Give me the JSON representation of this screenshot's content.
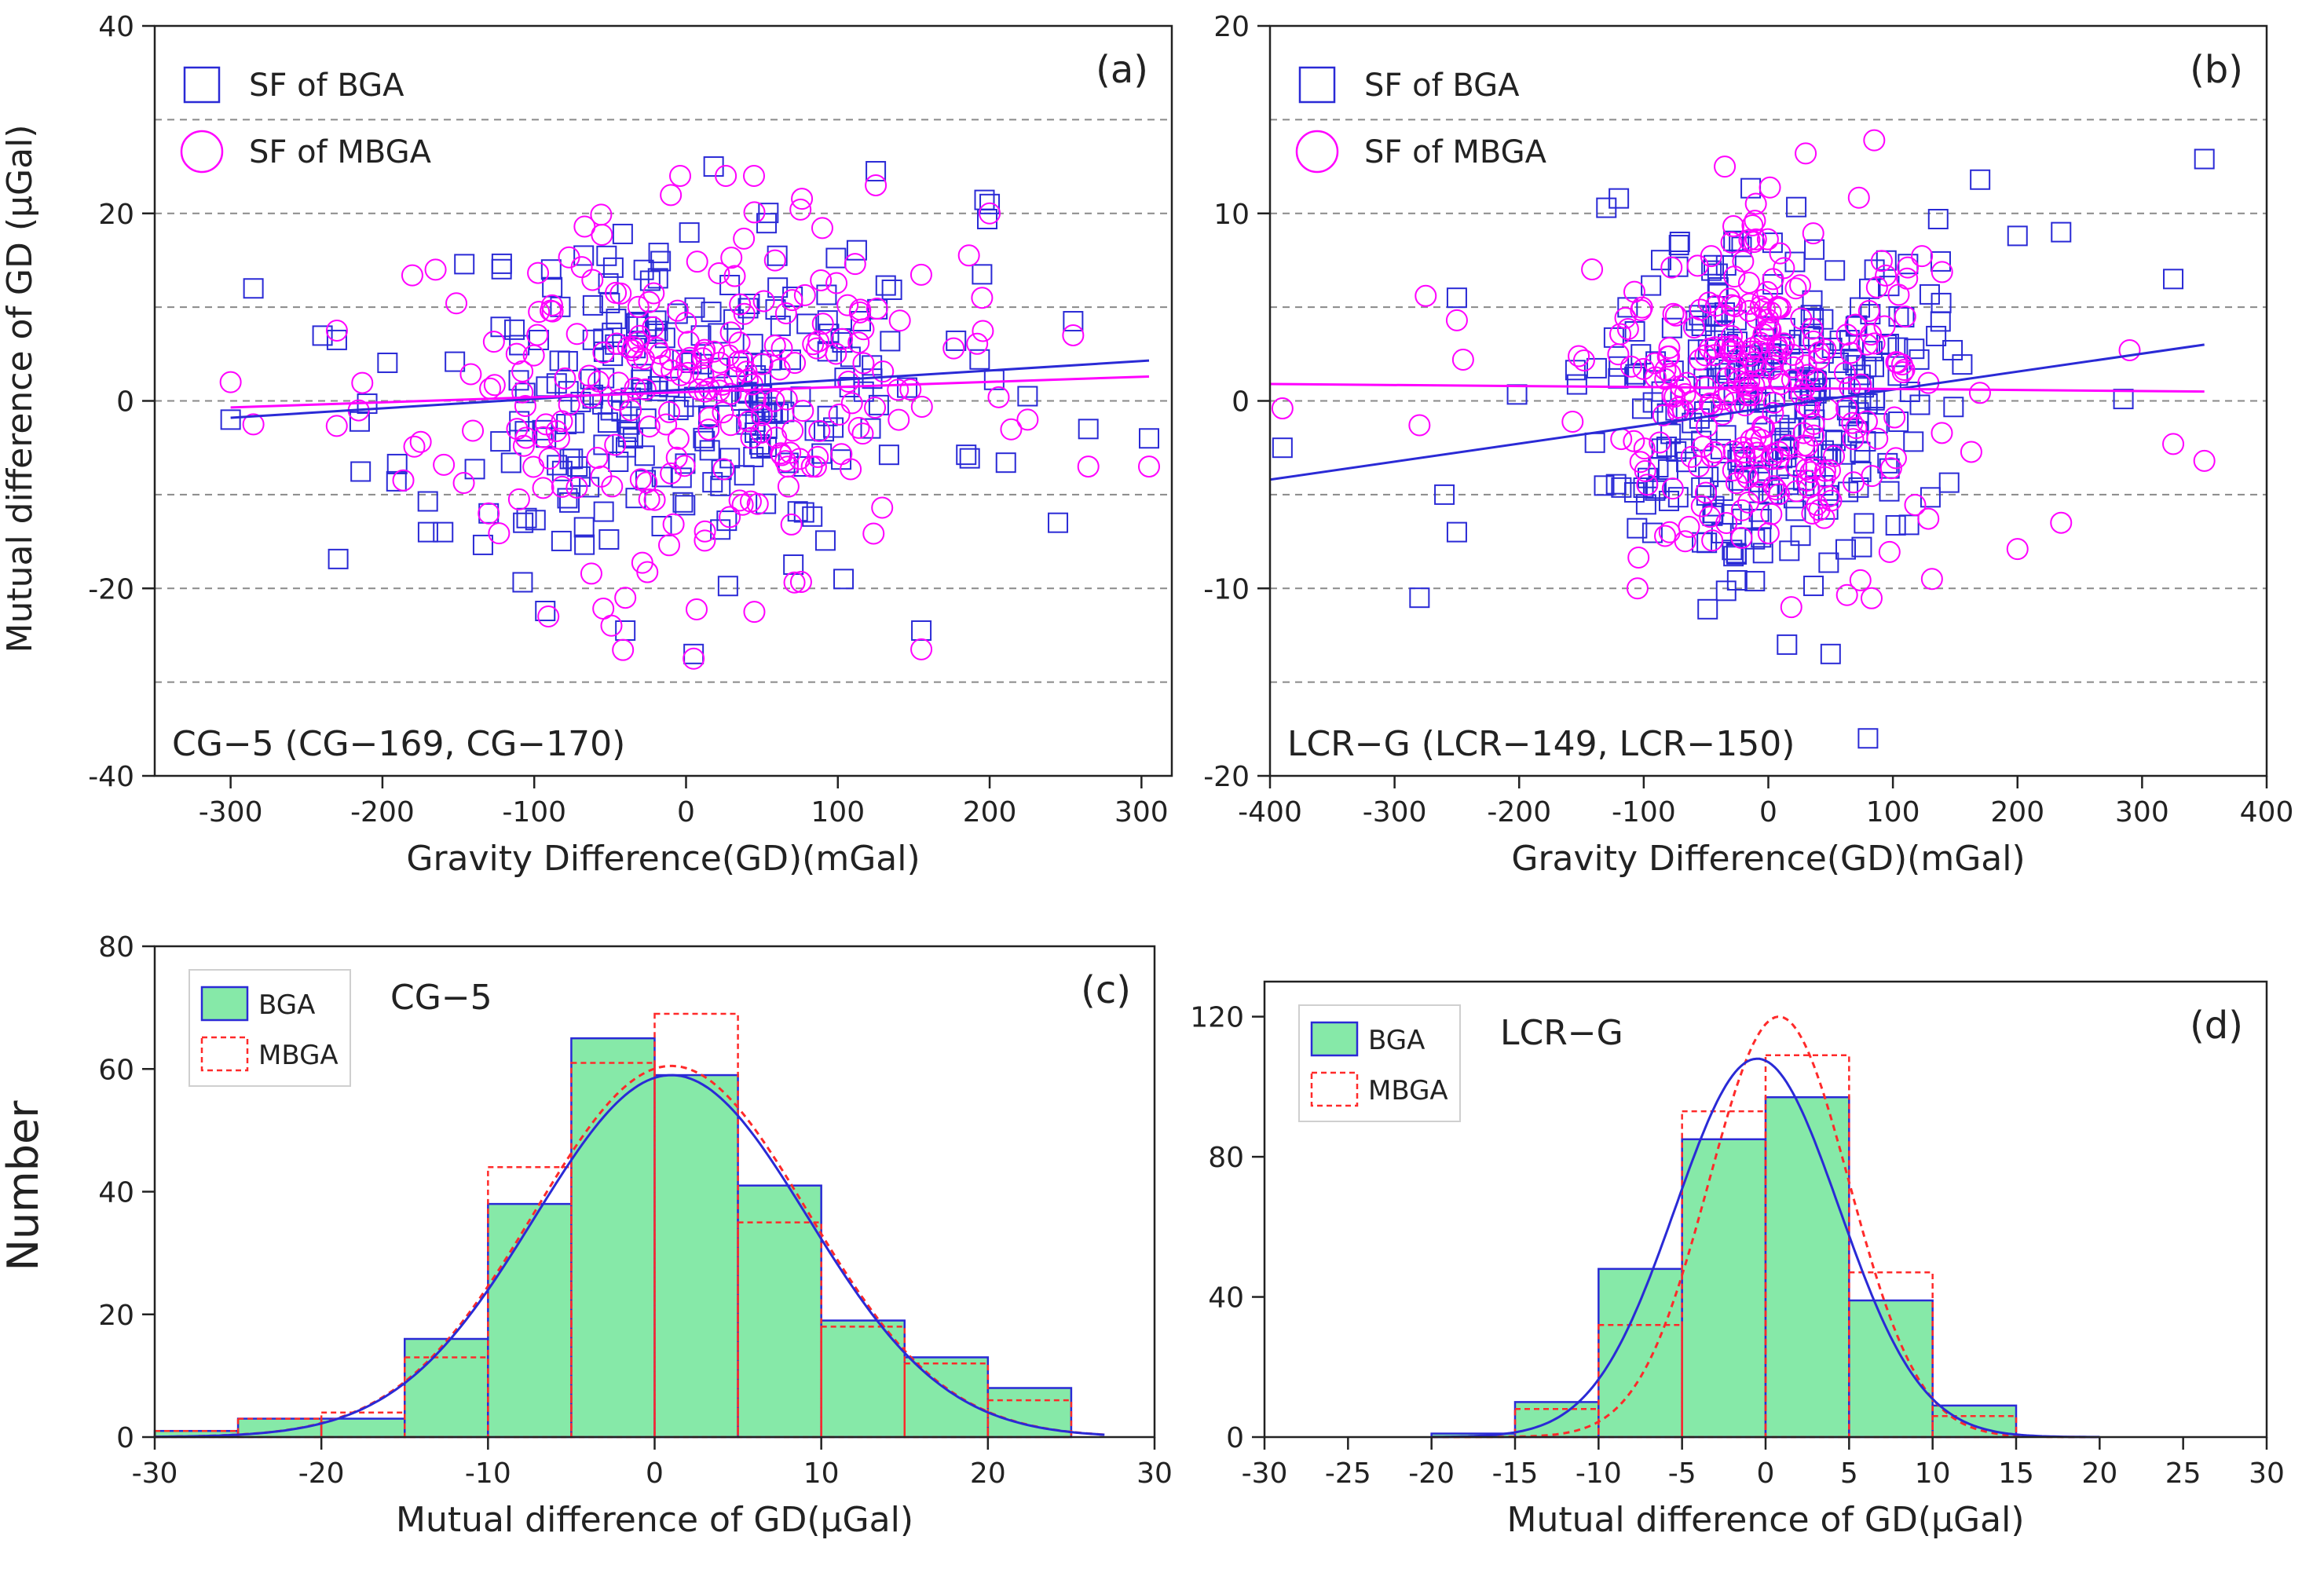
{
  "colors": {
    "bga": "#2a2ad6",
    "mbga": "#ff00ff",
    "mbga_hist": "#ff2a2a",
    "hist_fill": "#86e9a8",
    "grid": "#8a8a8a",
    "axis": "#222222"
  },
  "y_title_top": "Mutual difference of GD  (μGal)",
  "y_title_bottom": "Number",
  "chart_data": [
    {
      "panel": "a",
      "type": "scatter",
      "panel_label": "(a)",
      "note": "CG−5 (CG−169, CG−170)",
      "xlabel": "Gravity Difference(GD)(mGal)",
      "xlim": [
        -350,
        320
      ],
      "ylim": [
        -40,
        40
      ],
      "xticks": [
        -300,
        -200,
        -100,
        0,
        100,
        200,
        300
      ],
      "yticks": [
        -40,
        -20,
        0,
        20,
        40
      ],
      "xtick_labels": [
        "-300",
        "-200",
        "-100",
        "0",
        "100",
        "200",
        "300"
      ],
      "ytick_labels": [
        "-40",
        "-20",
        "0",
        "20",
        "40"
      ],
      "grid_y": [
        -30,
        -20,
        -10,
        0,
        10,
        20,
        30
      ],
      "legend": [
        "SF of BGA",
        "SF of MBGA"
      ],
      "trend_bga": [
        [
          -300,
          -1.8
        ],
        [
          305,
          4.3
        ]
      ],
      "trend_mbga": [
        [
          -300,
          -0.7
        ],
        [
          305,
          2.6
        ]
      ],
      "series": [
        {
          "name": "SF of BGA",
          "marker": "square",
          "seed": 11,
          "n": 230,
          "x_sigma": 85,
          "x_clip": [
            -300,
            305
          ],
          "y_sigma": 9.2,
          "y_clip": [
            -28,
            25
          ],
          "slope": 0.01,
          "intercept": 1.2,
          "points": [
            [
              -300,
              -2
            ],
            [
              -285,
              12
            ],
            [
              -230,
              6.5
            ],
            [
              -215,
              -2.2
            ],
            [
              -170,
              -14
            ],
            [
              -160,
              -14
            ],
            [
              -130,
              -12
            ],
            [
              -105,
              -12.5
            ],
            [
              125,
              24.5
            ],
            [
              155,
              -24.5
            ],
            [
              195,
              13.5
            ],
            [
              200,
              21
            ],
            [
              225,
              0.5
            ],
            [
              245,
              -13
            ],
            [
              255,
              8.5
            ],
            [
              265,
              -3
            ],
            [
              305,
              -4
            ],
            [
              -40,
              -24.5
            ],
            [
              5,
              -27
            ]
          ]
        },
        {
          "name": "SF of MBGA",
          "marker": "circle",
          "seed": 23,
          "n": 230,
          "x_sigma": 85,
          "x_clip": [
            -300,
            305
          ],
          "y_sigma": 9.2,
          "y_clip": [
            -28,
            24
          ],
          "slope": 0.005,
          "intercept": 0.9,
          "points": [
            [
              -300,
              2
            ],
            [
              -285,
              -2.5
            ],
            [
              -230,
              7.5
            ],
            [
              -165,
              14
            ],
            [
              -130,
              -12
            ],
            [
              -110,
              -10.5
            ],
            [
              125,
              23
            ],
            [
              155,
              -26.5
            ],
            [
              195,
              11
            ],
            [
              200,
              20
            ],
            [
              225,
              -2
            ],
            [
              255,
              7
            ],
            [
              265,
              -7
            ],
            [
              305,
              -7
            ],
            [
              -40,
              -21
            ],
            [
              5,
              -27.5
            ],
            [
              45,
              -22.5
            ]
          ]
        }
      ]
    },
    {
      "panel": "b",
      "type": "scatter",
      "panel_label": "(b)",
      "note": "LCR−G (LCR−149, LCR−150)",
      "xlabel": "Gravity Difference(GD)(mGal)",
      "xlim": [
        -400,
        400
      ],
      "ylim": [
        -20,
        20
      ],
      "xticks": [
        -400,
        -300,
        -200,
        -100,
        0,
        100,
        200,
        300,
        400
      ],
      "yticks": [
        -20,
        -10,
        0,
        10,
        20
      ],
      "xtick_labels": [
        "-400",
        "-300",
        "-200",
        "-100",
        "0",
        "100",
        "200",
        "300",
        "400"
      ],
      "ytick_labels": [
        "-20",
        "-10",
        "0",
        "10",
        "20"
      ],
      "grid_y": [
        -15,
        -10,
        -5,
        0,
        5,
        10,
        15
      ],
      "legend": [
        "SF of BGA",
        "SF of MBGA"
      ],
      "trend_bga": [
        [
          -400,
          -4.2
        ],
        [
          350,
          3
        ]
      ],
      "trend_mbga": [
        [
          -400,
          0.9
        ],
        [
          350,
          0.5
        ]
      ],
      "series": [
        {
          "name": "SF of BGA",
          "marker": "square",
          "seed": 37,
          "n": 270,
          "x_sigma": 65,
          "x_clip": [
            -390,
            355
          ],
          "y_sigma": 4.6,
          "y_clip": [
            -14,
            12
          ],
          "slope": 0.009,
          "intercept": 0.3,
          "points": [
            [
              -390,
              -2.5
            ],
            [
              -280,
              -10.5
            ],
            [
              -250,
              5.5
            ],
            [
              -130,
              10.3
            ],
            [
              -120,
              10.8
            ],
            [
              170,
              11.8
            ],
            [
              200,
              8.8
            ],
            [
              235,
              9
            ],
            [
              285,
              0.1
            ],
            [
              325,
              6.5
            ],
            [
              350,
              12.9
            ],
            [
              80,
              -18
            ],
            [
              15,
              -13
            ],
            [
              50,
              -13.5
            ],
            [
              -250,
              -7
            ],
            [
              -260,
              -5
            ]
          ]
        },
        {
          "name": "SF of MBGA",
          "marker": "circle",
          "seed": 41,
          "n": 270,
          "x_sigma": 65,
          "x_clip": [
            -390,
            355
          ],
          "y_sigma": 4.4,
          "y_clip": [
            -11,
            14
          ],
          "slope": 0.0,
          "intercept": 0.7,
          "points": [
            [
              -390,
              -0.4
            ],
            [
              -275,
              5.6
            ],
            [
              -280,
              -1.3
            ],
            [
              -250,
              4.3
            ],
            [
              -245,
              2.2
            ],
            [
              85,
              13.9
            ],
            [
              30,
              13.2
            ],
            [
              235,
              -6.5
            ],
            [
              200,
              -7.9
            ],
            [
              290,
              2.7
            ],
            [
              325,
              -2.3
            ],
            [
              350,
              -3.2
            ],
            [
              -105,
              -10
            ]
          ]
        }
      ]
    },
    {
      "panel": "c",
      "type": "histogram",
      "panel_label": "(c)",
      "note": "CG−5",
      "xlabel": "Mutual difference of GD(μGal)",
      "xlim": [
        -30,
        30
      ],
      "ylim": [
        0,
        80
      ],
      "xticks": [
        -30,
        -20,
        -10,
        0,
        10,
        20,
        30
      ],
      "yticks": [
        0,
        20,
        40,
        60,
        80
      ],
      "xtick_labels": [
        "-30",
        "-20",
        "-10",
        "0",
        "10",
        "20",
        "30"
      ],
      "ytick_labels": [
        "0",
        "20",
        "40",
        "60",
        "80"
      ],
      "legend": [
        "BGA",
        "MBGA"
      ],
      "bin_edges": [
        -30,
        -25,
        -20,
        -15,
        -10,
        -5,
        0,
        5,
        10,
        15,
        20,
        25
      ],
      "bga_counts": [
        1,
        3,
        3,
        16,
        38,
        65,
        59,
        41,
        19,
        13,
        8
      ],
      "mbga_counts": [
        1,
        3,
        4,
        13,
        44,
        61,
        69,
        35,
        18,
        12,
        6
      ],
      "fit_bga": {
        "peak": 59,
        "mu": 1,
        "sigma": 8.2,
        "range": [
          -30,
          27
        ]
      },
      "fit_mbga": {
        "peak": 60.5,
        "mu": 1,
        "sigma": 8.2,
        "range": [
          -30,
          27
        ]
      }
    },
    {
      "panel": "d",
      "type": "histogram",
      "panel_label": "(d)",
      "note": "LCR−G",
      "xlabel": "Mutual difference of GD(μGal)",
      "xlim": [
        -30,
        30
      ],
      "ylim": [
        0,
        130
      ],
      "xticks": [
        -30,
        -25,
        -20,
        -15,
        -10,
        -5,
        0,
        5,
        10,
        15,
        20,
        25,
        30
      ],
      "yticks": [
        0,
        40,
        80,
        120
      ],
      "xtick_labels": [
        "-30",
        "-25",
        "-20",
        "-15",
        "-10",
        "-5",
        "0",
        "5",
        "10",
        "15",
        "20",
        "25",
        "30"
      ],
      "ytick_labels": [
        "0",
        "40",
        "80",
        "120"
      ],
      "legend": [
        "BGA",
        "MBGA"
      ],
      "bin_edges": [
        -20,
        -15,
        -10,
        -5,
        0,
        5,
        10,
        15
      ],
      "bga_counts": [
        1,
        10,
        48,
        85,
        97,
        39,
        9
      ],
      "mbga_counts": [
        0,
        8,
        32,
        93,
        109,
        47,
        6
      ],
      "fit_bga": {
        "peak": 108,
        "mu": -0.5,
        "sigma": 4.9,
        "range": [
          -20,
          20
        ]
      },
      "fit_mbga": {
        "peak": 120,
        "mu": 0.8,
        "sigma": 4.2,
        "range": [
          -20,
          20
        ]
      }
    }
  ]
}
